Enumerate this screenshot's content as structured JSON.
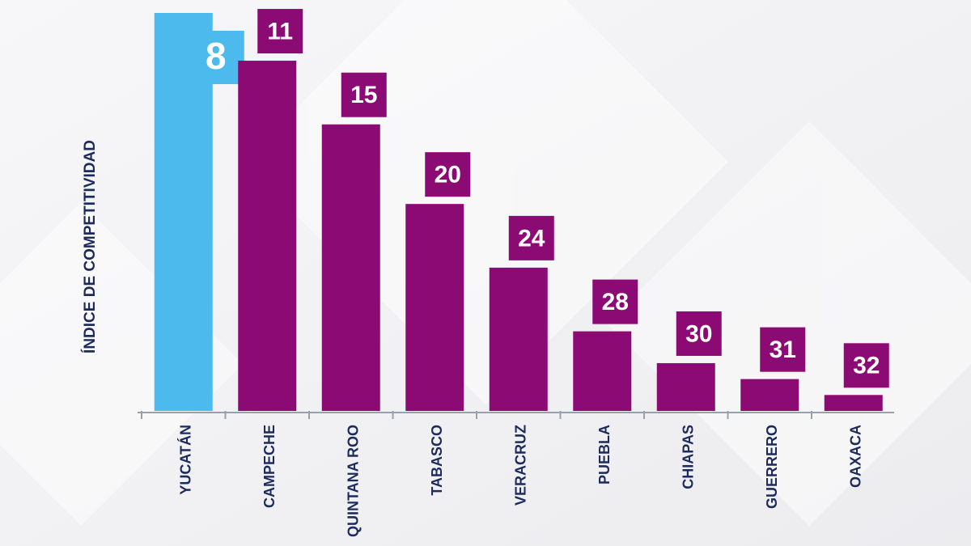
{
  "chart_data": {
    "type": "bar",
    "y_axis_label": "ÍNDICE DE COMPETITIVIDAD",
    "categories": [
      "YUCATÁN",
      "CAMPECHE",
      "QUINTANA ROO",
      "TABASCO",
      "VERACRUZ",
      "PUEBLA",
      "CHIAPAS",
      "GUERRERO",
      "OAXACA"
    ],
    "values": [
      8,
      11,
      15,
      20,
      24,
      28,
      30,
      31,
      32
    ],
    "colors": [
      "#4dbaee",
      "#8c0a74",
      "#8c0a74",
      "#8c0a74",
      "#8c0a74",
      "#8c0a74",
      "#8c0a74",
      "#8c0a74",
      "#8c0a74"
    ]
  }
}
